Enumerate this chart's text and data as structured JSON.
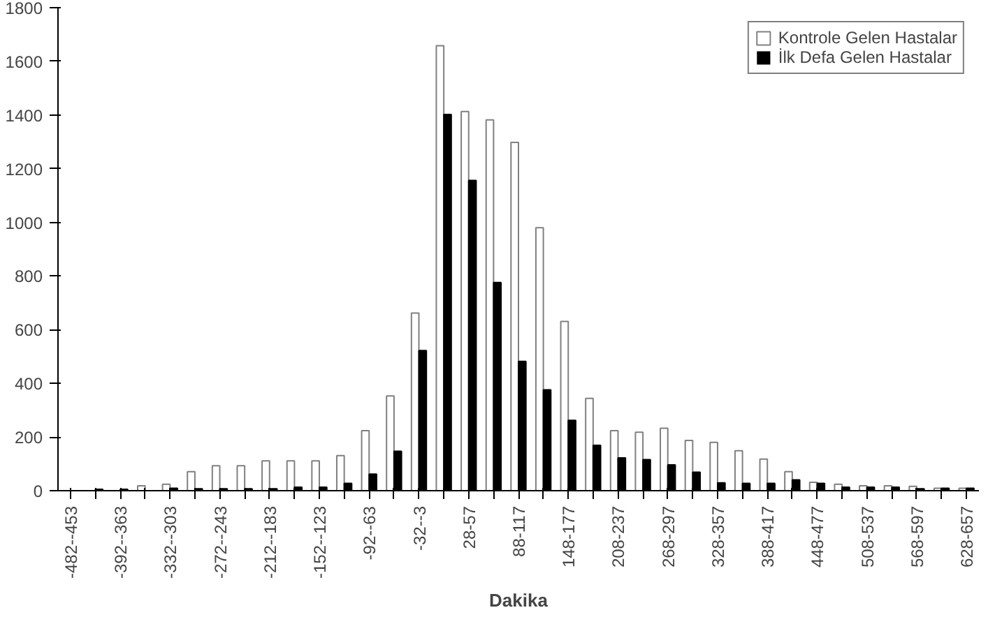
{
  "chart_data": {
    "type": "bar",
    "xlabel": "Dakika",
    "categories": [
      "-482--453",
      null,
      "-392--363",
      null,
      "-332--303",
      null,
      "-272--243",
      null,
      "-212--183",
      null,
      "-152--123",
      null,
      "-92--63",
      null,
      "-32--3",
      null,
      "28-57",
      null,
      "88-117",
      null,
      "148-177",
      null,
      "208-237",
      null,
      "268-297",
      null,
      "328-357",
      null,
      "388-417",
      null,
      "448-477",
      null,
      "508-537",
      null,
      "568-597",
      null,
      "628-657"
    ],
    "series": [
      {
        "name": "Kontrole Gelen Hastalar",
        "color": "#ffffff",
        "values": [
          null,
          null,
          null,
          18,
          24,
          71,
          93,
          93,
          111,
          111,
          111,
          131,
          224,
          353,
          662,
          1658,
          1413,
          1382,
          1298,
          980,
          631,
          344,
          224,
          218,
          233,
          187,
          180,
          149,
          118,
          71,
          31,
          24,
          18,
          18,
          16,
          9,
          9
        ]
      },
      {
        "name": "İlk Defa Gelen Hastalar",
        "color": "#000000",
        "values": [
          0,
          5,
          5,
          0,
          9,
          7,
          7,
          7,
          7,
          13,
          13,
          27,
          62,
          147,
          522,
          1402,
          1156,
          776,
          482,
          376,
          262,
          169,
          122,
          116,
          96,
          69,
          29,
          27,
          27,
          40,
          27,
          13,
          13,
          13,
          7,
          9,
          9
        ]
      }
    ],
    "ylim": [
      0,
      1800
    ],
    "yticks": [
      0,
      200,
      400,
      600,
      800,
      1000,
      1200,
      1400,
      1600,
      1800
    ],
    "grid": false,
    "legend": "top right"
  }
}
